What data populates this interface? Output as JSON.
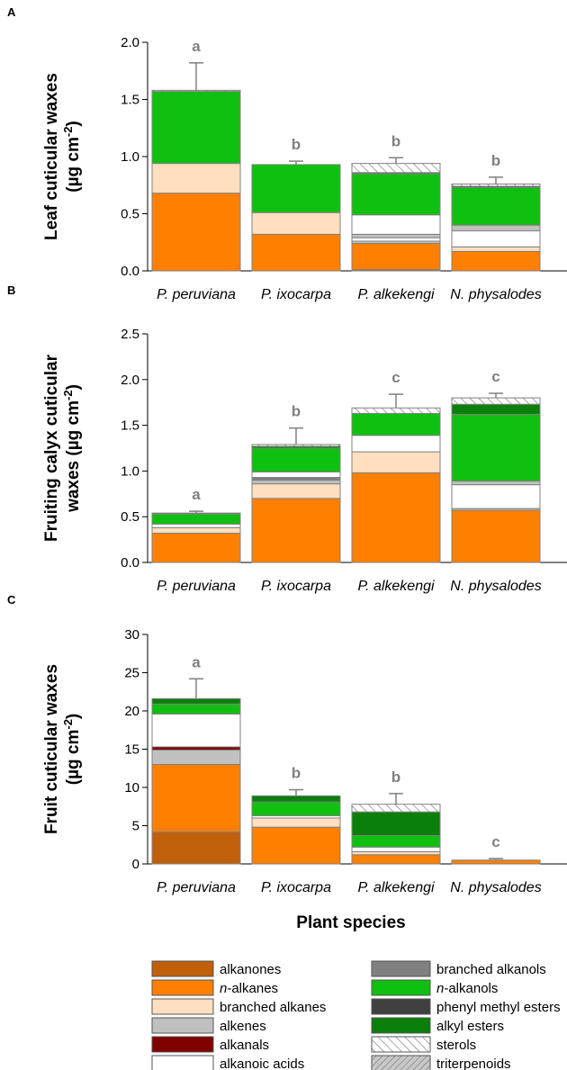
{
  "colors": {
    "alkanones": "#c0600a",
    "n_alkanes": "#ff8000",
    "branched_alkanes": "#ffdfc0",
    "alkenes": "#c0c0c0",
    "alkanals": "#800000",
    "alkanoic_acids": "#ffffff",
    "branched_alkanols": "#808080",
    "n_alkanols": "#10c010",
    "phenyl_methyl_esters": "#404040",
    "alkyl_esters": "#0a800a",
    "sterols": "#ffffff",
    "triterpenoids": "#c8c8c8",
    "axis": "#000000",
    "bar_border": "#808080",
    "letter": "#808080"
  },
  "x_title": "Plant species",
  "legend": [
    {
      "key": "alkanones",
      "label": "alkanones"
    },
    {
      "key": "n_alkanes",
      "label_prefix": "n",
      "label": "-alkanes"
    },
    {
      "key": "branched_alkanes",
      "label": "branched alkanes"
    },
    {
      "key": "alkenes",
      "label": "alkenes"
    },
    {
      "key": "alkanals",
      "label": "alkanals"
    },
    {
      "key": "alkanoic_acids",
      "label": "alkanoic acids"
    },
    {
      "key": "branched_alkanols",
      "label": "branched alkanols"
    },
    {
      "key": "n_alkanols",
      "label_prefix": "n",
      "label": "-alkanols"
    },
    {
      "key": "phenyl_methyl_esters",
      "label": "phenyl methyl esters"
    },
    {
      "key": "alkyl_esters",
      "label": "alkyl esters"
    },
    {
      "key": "sterols",
      "label": "sterols"
    },
    {
      "key": "triterpenoids",
      "label": "triterpenoids"
    }
  ],
  "chart_data": [
    {
      "panel": "A",
      "type": "bar",
      "stacked": true,
      "ylabel_line1": "Leaf cuticular waxes",
      "ylabel_line2": "(µg cm",
      "ylabel_sup": "-2",
      "ylabel_close": ")",
      "ylim": [
        0,
        2.0
      ],
      "yticks": [
        "0.0",
        "0.5",
        "1.0",
        "1.5",
        "2.0"
      ],
      "ytick_values": [
        0,
        0.5,
        1.0,
        1.5,
        2.0
      ],
      "categories": [
        "P. peruviana",
        "P. ixocarpa",
        "P. alkekengi",
        "N. physalodes"
      ],
      "letters": [
        "a",
        "b",
        "b",
        "b"
      ],
      "error_tops": [
        1.82,
        0.96,
        0.99,
        0.82
      ],
      "stacks": [
        [
          [
            "n_alkanes",
            0.68
          ],
          [
            "branched_alkanes",
            0.26
          ],
          [
            "n_alkanols",
            0.63
          ],
          [
            "sterols",
            0.01
          ]
        ],
        [
          [
            "n_alkanes",
            0.32
          ],
          [
            "branched_alkanes",
            0.19
          ],
          [
            "n_alkanols",
            0.42
          ]
        ],
        [
          [
            "alkanones",
            0.01
          ],
          [
            "n_alkanes",
            0.23
          ],
          [
            "alkenes",
            0.02
          ],
          [
            "alkanoic_acids",
            0.03
          ],
          [
            "alkenes",
            0.03
          ],
          [
            "alkanoic_acids",
            0.17
          ],
          [
            "n_alkanols",
            0.36
          ],
          [
            "phenyl_methyl_esters",
            0.01
          ],
          [
            "sterols",
            0.08
          ]
        ],
        [
          [
            "n_alkanes",
            0.17
          ],
          [
            "branched_alkanes",
            0.04
          ],
          [
            "alkanoic_acids",
            0.14
          ],
          [
            "alkenes",
            0.05
          ],
          [
            "n_alkanols",
            0.33
          ],
          [
            "phenyl_methyl_esters",
            0.01
          ],
          [
            "sterols",
            0.02
          ]
        ]
      ]
    },
    {
      "panel": "B",
      "type": "bar",
      "stacked": true,
      "ylabel_line1": "Fruiting calyx cuticular",
      "ylabel_line2": "waxes (µg cm",
      "ylabel_sup": "-2",
      "ylabel_close": ")",
      "ylim": [
        0,
        2.5
      ],
      "yticks": [
        "0.0",
        "0.5",
        "1.0",
        "1.5",
        "2.0",
        "2.5"
      ],
      "ytick_values": [
        0,
        0.5,
        1.0,
        1.5,
        2.0,
        2.5
      ],
      "categories": [
        "P. peruviana",
        "P. ixocarpa",
        "P. alkekengi",
        "N. physalodes"
      ],
      "letters": [
        "a",
        "b",
        "c",
        "c"
      ],
      "error_tops": [
        0.56,
        1.47,
        1.84,
        1.85
      ],
      "stacks": [
        [
          [
            "n_alkanes",
            0.32
          ],
          [
            "branched_alkanes",
            0.06
          ],
          [
            "alkanoic_acids",
            0.04
          ],
          [
            "n_alkanols",
            0.11
          ],
          [
            "phenyl_methyl_esters",
            0.01
          ]
        ],
        [
          [
            "n_alkanes",
            0.7
          ],
          [
            "branched_alkanes",
            0.16
          ],
          [
            "alkenes",
            0.04
          ],
          [
            "branched_alkanols",
            0.03
          ],
          [
            "alkanoic_acids",
            0.06
          ],
          [
            "n_alkanols",
            0.26
          ],
          [
            "alkyl_esters",
            0.02
          ],
          [
            "sterols",
            0.02
          ]
        ],
        [
          [
            "n_alkanes",
            0.98
          ],
          [
            "branched_alkanes",
            0.23
          ],
          [
            "alkanoic_acids",
            0.18
          ],
          [
            "n_alkanols",
            0.24
          ],
          [
            "sterols",
            0.06
          ]
        ],
        [
          [
            "n_alkanes",
            0.57
          ],
          [
            "alkenes",
            0.02
          ],
          [
            "alkanoic_acids",
            0.26
          ],
          [
            "alkenes",
            0.04
          ],
          [
            "n_alkanols",
            0.73
          ],
          [
            "alkyl_esters",
            0.11
          ],
          [
            "sterols",
            0.07
          ]
        ]
      ]
    },
    {
      "panel": "C",
      "type": "bar",
      "stacked": true,
      "ylabel_line1": "Fruit cuticular waxes",
      "ylabel_line2": "(µg cm",
      "ylabel_sup": "-2",
      "ylabel_close": ")",
      "ylim": [
        0,
        30
      ],
      "yticks": [
        "0",
        "5",
        "10",
        "15",
        "20",
        "25",
        "30"
      ],
      "ytick_values": [
        0,
        5,
        10,
        15,
        20,
        25,
        30
      ],
      "categories": [
        "P. peruviana",
        "P. ixocarpa",
        "P. alkekengi",
        "N. physalodes"
      ],
      "letters": [
        "a",
        "b",
        "b",
        "c"
      ],
      "error_tops": [
        24.2,
        9.7,
        9.2,
        0.7
      ],
      "stacks": [
        [
          [
            "alkanones",
            4.2
          ],
          [
            "n_alkanes",
            8.8
          ],
          [
            "alkenes",
            1.9
          ],
          [
            "alkanals",
            0.4
          ],
          [
            "alkanoic_acids",
            4.3
          ],
          [
            "n_alkanols",
            1.3
          ],
          [
            "alkyl_esters",
            0.7
          ]
        ],
        [
          [
            "n_alkanes",
            4.8
          ],
          [
            "branched_alkanes",
            1.2
          ],
          [
            "alkanoic_acids",
            0.3
          ],
          [
            "n_alkanols",
            1.8
          ],
          [
            "alkyl_esters",
            0.8
          ]
        ],
        [
          [
            "n_alkanes",
            1.2
          ],
          [
            "branched_alkanes",
            0.4
          ],
          [
            "alkanoic_acids",
            0.6
          ],
          [
            "n_alkanols",
            1.5
          ],
          [
            "alkyl_esters",
            3.1
          ],
          [
            "sterols",
            1.0
          ]
        ],
        [
          [
            "n_alkanes",
            0.5
          ]
        ]
      ]
    }
  ]
}
